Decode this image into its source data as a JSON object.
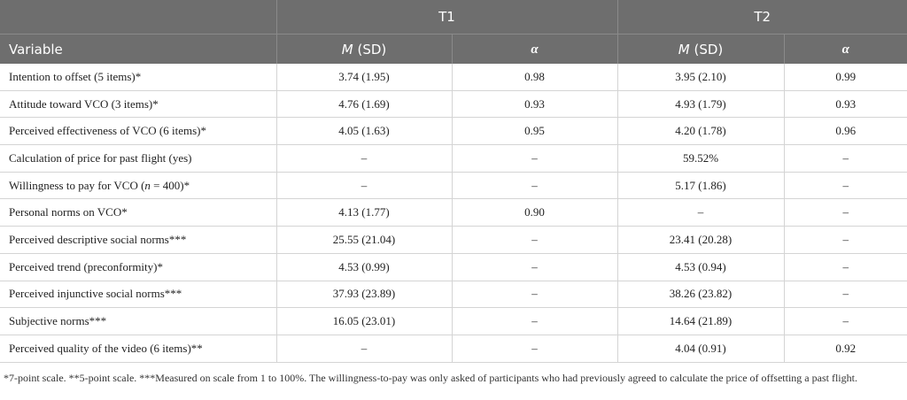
{
  "table": {
    "groups": [
      "T1",
      "T2"
    ],
    "columns": [
      [
        {
          "text": "Variable"
        }
      ],
      [
        {
          "text": "M",
          "italic": true
        },
        {
          "text": " (SD)"
        }
      ],
      [
        {
          "text": "α",
          "italic": true
        }
      ],
      [
        {
          "text": "M",
          "italic": true
        },
        {
          "text": " (SD)"
        }
      ],
      [
        {
          "text": "α",
          "italic": true
        }
      ]
    ],
    "rows": [
      [
        "Intention to offset (5 items)*",
        "3.74 (1.95)",
        "0.98",
        "3.95 (2.10)",
        "0.99"
      ],
      [
        "Attitude toward VCO (3 items)*",
        "4.76 (1.69)",
        "0.93",
        "4.93 (1.79)",
        "0.93"
      ],
      [
        "Perceived effectiveness of VCO (6 items)*",
        "4.05 (1.63)",
        "0.95",
        "4.20 (1.78)",
        "0.96"
      ],
      [
        "Calculation of price for past flight (yes)",
        "–",
        "–",
        "59.52%",
        "–"
      ],
      [
        [
          {
            "text": "Willingness to pay for VCO ("
          },
          {
            "text": "n",
            "italic": true
          },
          {
            "text": " = 400)*"
          }
        ],
        "–",
        "–",
        "5.17 (1.86)",
        "–"
      ],
      [
        "Personal norms on VCO*",
        "4.13 (1.77)",
        "0.90",
        "–",
        "–"
      ],
      [
        "Perceived descriptive social norms***",
        "25.55 (21.04)",
        "–",
        "23.41 (20.28)",
        "–"
      ],
      [
        "Perceived trend (preconformity)*",
        "4.53 (0.99)",
        "–",
        "4.53 (0.94)",
        "–"
      ],
      [
        "Perceived injunctive social norms***",
        "37.93 (23.89)",
        "–",
        "38.26 (23.82)",
        "–"
      ],
      [
        "Subjective norms***",
        "16.05 (23.01)",
        "–",
        "14.64 (21.89)",
        "–"
      ],
      [
        "Perceived quality of the video (6 items)**",
        "–",
        "–",
        "4.04 (0.91)",
        "0.92"
      ]
    ],
    "footnote": "*7-point scale. **5-point scale. ***Measured on scale from 1 to 100%. The willingness-to-pay was only asked of participants who had previously agreed to calculate the price of offsetting a past flight."
  }
}
